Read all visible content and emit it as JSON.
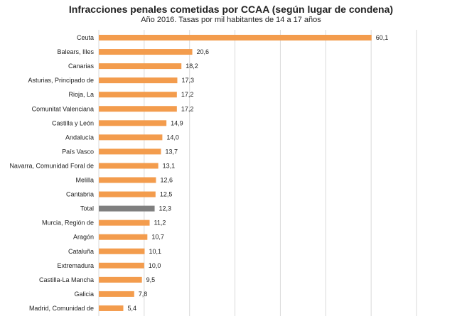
{
  "chart_data": {
    "type": "bar",
    "orientation": "horizontal",
    "title": "Infracciones penales cometidas por CCAA (según lugar de condena)",
    "subtitle": "Año 2016. Tasas por mil habitantes de 14 a 17 años",
    "xlabel": "",
    "ylabel": "",
    "xlim": [
      0,
      70
    ],
    "grid": true,
    "legend": "none",
    "colors": {
      "bar": "#F39C4D",
      "highlight": "#7F7F7F",
      "grid": "#D9D9D9"
    },
    "highlight_category": "Total",
    "categories": [
      "Ceuta",
      "Balears, Illes",
      "Canarias",
      "Asturias, Principado de",
      "Rioja, La",
      "Comunitat Valenciana",
      "Castilla y León",
      "Andalucía",
      "País Vasco",
      "Navarra, Comunidad Foral de",
      "Melilla",
      "Cantabria",
      "Total",
      "Murcia, Región de",
      "Aragón",
      "Cataluña",
      "Extremadura",
      "Castilla-La Mancha",
      "Galicia",
      "Madrid, Comunidad de"
    ],
    "values": [
      60.1,
      20.6,
      18.2,
      17.3,
      17.2,
      17.2,
      14.9,
      14.0,
      13.7,
      13.1,
      12.6,
      12.5,
      12.3,
      11.2,
      10.7,
      10.1,
      10.0,
      9.5,
      7.8,
      5.4
    ],
    "value_labels": [
      "60,1",
      "20,6",
      "18,2",
      "17,3",
      "17,2",
      "17,2",
      "14,9",
      "14,0",
      "13,7",
      "13,1",
      "12,6",
      "12,5",
      "12,3",
      "11,2",
      "10,7",
      "10,1",
      "10,0",
      "9,5",
      "7,8",
      "5,4"
    ]
  }
}
